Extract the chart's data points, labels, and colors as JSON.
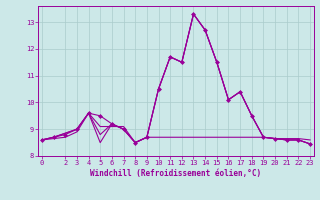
{
  "xlabel": "Windchill (Refroidissement éolien,°C)",
  "x_values": [
    0,
    1,
    2,
    3,
    4,
    5,
    6,
    7,
    8,
    9,
    10,
    11,
    12,
    13,
    14,
    15,
    16,
    17,
    18,
    19,
    20,
    21,
    22,
    23
  ],
  "x_tick_positions": [
    0,
    2,
    3,
    4,
    5,
    6,
    7,
    8,
    9,
    10,
    11,
    12,
    13,
    14,
    15,
    16,
    17,
    18,
    19,
    20,
    21,
    22,
    23
  ],
  "x_tick_labels": [
    "0",
    "2",
    "3",
    "4",
    "5",
    "6",
    "7",
    "8",
    "9",
    "10",
    "11",
    "12",
    "13",
    "14",
    "15",
    "16",
    "17",
    "18",
    "19",
    "20",
    "21",
    "22",
    "23"
  ],
  "ylim": [
    8.0,
    13.6
  ],
  "yticks": [
    8,
    9,
    10,
    11,
    12,
    13
  ],
  "ytick_labels": [
    "8",
    "9",
    "10",
    "11",
    "12",
    "13"
  ],
  "xlim": [
    -0.3,
    23.3
  ],
  "bg_color": "#cce8e8",
  "grid_color": "#aacccc",
  "line_color": "#990099",
  "series1": [
    8.6,
    8.65,
    8.7,
    8.9,
    9.6,
    9.1,
    9.1,
    9.1,
    8.5,
    8.7,
    8.7,
    8.7,
    8.7,
    8.7,
    8.7,
    8.7,
    8.7,
    8.7,
    8.7,
    8.7,
    8.65,
    8.65,
    8.65,
    8.6
  ],
  "series2": [
    8.6,
    8.7,
    8.8,
    9.0,
    9.6,
    9.5,
    9.2,
    9.0,
    8.5,
    8.7,
    10.5,
    11.7,
    11.5,
    13.3,
    12.7,
    11.5,
    10.1,
    10.4,
    9.5,
    8.7,
    8.65,
    8.6,
    8.6,
    8.45
  ],
  "series3": [
    8.6,
    8.7,
    8.85,
    9.0,
    9.6,
    8.8,
    9.2,
    9.0,
    8.5,
    8.7,
    10.5,
    11.7,
    11.5,
    13.3,
    12.7,
    11.5,
    10.1,
    10.4,
    9.5,
    8.7,
    8.65,
    8.6,
    8.6,
    8.45
  ],
  "series4": [
    8.6,
    8.7,
    8.85,
    9.0,
    9.6,
    8.5,
    9.2,
    9.0,
    8.5,
    8.7,
    10.5,
    11.7,
    11.5,
    13.3,
    12.7,
    11.5,
    10.1,
    10.4,
    9.5,
    8.7,
    8.65,
    8.6,
    8.6,
    8.45
  ],
  "lw": 0.8,
  "marker": "D",
  "marker_size": 2.0,
  "tick_fontsize": 5.0,
  "xlabel_fontsize": 5.5
}
